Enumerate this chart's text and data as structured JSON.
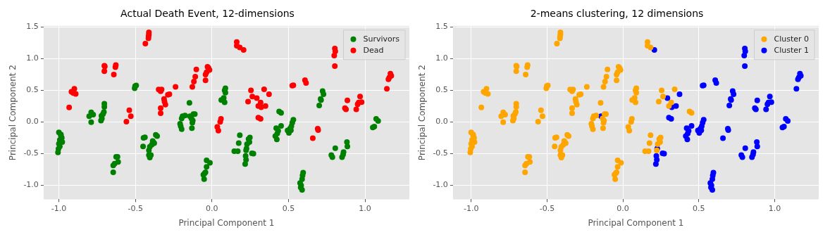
{
  "chart_data": [
    {
      "type": "scatter",
      "title": "Actual Death Event, 12-dimensions",
      "xlabel": "Principal Component 1",
      "ylabel": "Principal Component 2",
      "xlim": [
        -1.1,
        1.29
      ],
      "ylim": [
        -1.22,
        1.52
      ],
      "xticks": [
        {
          "value": -1,
          "label": "-1.0"
        },
        {
          "value": -0.5,
          "label": "-0.5"
        },
        {
          "value": 0,
          "label": "0.0"
        },
        {
          "value": 0.5,
          "label": "0.5"
        },
        {
          "value": 1,
          "label": "1.0"
        }
      ],
      "yticks": [
        {
          "value": -1,
          "label": "-1.0"
        },
        {
          "value": -0.5,
          "label": "-0.5"
        },
        {
          "value": 0,
          "label": "0.0"
        },
        {
          "value": 0.5,
          "label": "0.5"
        },
        {
          "value": 1,
          "label": "1.0"
        },
        {
          "value": 1.5,
          "label": "1.5"
        }
      ],
      "grid": true,
      "legend": "top right",
      "marker": "circle",
      "series": [
        {
          "name": "Survivors",
          "color": "#008000",
          "x": [
            -0.502,
            -0.495,
            -0.505,
            -0.703,
            -0.703,
            -0.706,
            -0.712,
            -0.722,
            -0.725,
            -0.719,
            -0.789,
            -0.776,
            -0.802,
            -0.789,
            -1.0,
            -0.987,
            -0.981,
            -0.994,
            -0.978,
            -1.0,
            -0.994,
            -1.003,
            -1.006,
            -0.987,
            -0.626,
            -0.617,
            -0.613,
            -0.636,
            -0.645,
            -0.645,
            -0.447,
            -0.438,
            -0.45,
            -0.367,
            -0.358,
            -0.387,
            -0.377,
            -0.393,
            -0.406,
            -0.412,
            -0.412,
            -0.406,
            -0.399,
            -0.147,
            -0.192,
            -0.198,
            -0.176,
            -0.208,
            -0.204,
            -0.198,
            -0.144,
            -0.134,
            -0.125,
            -0.121,
            -0.112,
            -0.128,
            -0.131,
            -0.035,
            -0.013,
            -0.035,
            -0.048,
            -0.056,
            -0.051,
            -0.042,
            0.088,
            0.083,
            0.088,
            0.077,
            0.061,
            0.083,
            0.439,
            0.452,
            0.42,
            0.433,
            0.452,
            0.427,
            0.414,
            0.424,
            0.532,
            0.525,
            0.519,
            0.51,
            0.494,
            0.503,
            0.516,
            0.723,
            0.729,
            0.71,
            0.713,
            0.701,
            0.182,
            0.175,
            0.248,
            0.239,
            0.245,
            0.229,
            0.226,
            0.223,
            0.261,
            0.271,
            0.22,
            0.223,
            0.217,
            0.146,
            0.169,
            0.596,
            0.592,
            0.589,
            0.576,
            0.583,
            0.589,
            0.58,
            0.806,
            0.78,
            0.787,
            0.882,
            0.885,
            0.86,
            0.857,
            0.85,
            1.073,
            1.086,
            1.061,
            1.051
          ],
          "values": [
            0.568,
            0.578,
            0.534,
            0.289,
            0.241,
            0.16,
            0.126,
            0.099,
            0.024,
            0.058,
            0.153,
            0.119,
            0.092,
            -0.003,
            -0.163,
            -0.197,
            -0.248,
            -0.282,
            -0.316,
            -0.344,
            -0.384,
            -0.425,
            -0.48,
            -0.214,
            -0.548,
            -0.548,
            -0.629,
            -0.656,
            -0.684,
            -0.793,
            -0.248,
            -0.241,
            -0.384,
            -0.201,
            -0.221,
            -0.299,
            -0.333,
            -0.357,
            -0.391,
            -0.446,
            -0.52,
            -0.561,
            -0.52,
            0.303,
            0.092,
            0.058,
            0.105,
            -0.027,
            -0.065,
            -0.112,
            0.092,
            0.058,
            0.024,
            0.126,
            0.126,
            -0.01,
            -0.095,
            -0.605,
            -0.643,
            -0.707,
            -0.81,
            -0.833,
            -0.901,
            -0.793,
            0.534,
            0.5,
            0.466,
            0.381,
            0.347,
            0.313,
            0.167,
            0.146,
            -0.095,
            -0.139,
            -0.061,
            -0.18,
            -0.221,
            -0.275,
            0.037,
            -0.01,
            -0.065,
            -0.105,
            -0.133,
            -0.17,
            -0.129,
            0.49,
            0.439,
            0.364,
            0.347,
            0.262,
            -0.207,
            -0.333,
            -0.242,
            -0.269,
            -0.316,
            -0.35,
            -0.418,
            -0.446,
            -0.493,
            -0.5,
            -0.534,
            -0.595,
            -0.663,
            -0.459,
            -0.459,
            -0.799,
            -0.844,
            -0.901,
            -0.963,
            -1.003,
            -1.071,
            -1.031,
            -0.412,
            -0.52,
            -0.554,
            -0.316,
            -0.384,
            -0.473,
            -0.514,
            -0.554,
            0.051,
            0.017,
            -0.071,
            -0.085
          ]
        },
        {
          "name": "Dead",
          "color": "#ff0000",
          "x": [
            -0.412,
            -0.412,
            -0.414,
            -0.415,
            -0.435,
            -0.703,
            -0.7,
            -0.703,
            -0.628,
            -0.631,
            -0.641,
            -0.899,
            -0.918,
            -0.906,
            -0.89,
            -0.933,
            -0.029,
            -0.022,
            -0.016,
            -0.035,
            -0.042,
            -0.042,
            -0.102,
            -0.109,
            -0.118,
            -0.128,
            -0.348,
            -0.329,
            -0.335,
            -0.288,
            -0.278,
            -0.313,
            -0.31,
            -0.304,
            -0.335,
            -0.335,
            -0.238,
            -0.54,
            -0.53,
            -0.559,
            0.059,
            0.054,
            0.035,
            0.042,
            0.162,
            0.162,
            0.182,
            0.207,
            0.255,
            0.264,
            0.293,
            0.236,
            0.318,
            0.303,
            0.322,
            0.35,
            0.341,
            0.373,
            0.303,
            0.318,
            0.525,
            0.532,
            0.608,
            0.615,
            0.803,
            0.806,
            0.799,
            0.803,
            0.885,
            0.869,
            0.876,
            0.968,
            0.959,
            0.952,
            0.978,
            0.943,
            0.691,
            0.694,
            0.659,
            1.166,
            1.172,
            1.159,
            1.153,
            1.143
          ],
          "values": [
            1.418,
            1.384,
            1.357,
            1.323,
            1.241,
            0.891,
            0.88,
            0.803,
            0.901,
            0.867,
            0.752,
            0.527,
            0.48,
            0.459,
            0.446,
            0.231,
            0.874,
            0.854,
            0.823,
            0.786,
            0.752,
            0.66,
            0.833,
            0.718,
            0.639,
            0.558,
            0.514,
            0.514,
            0.486,
            0.432,
            0.439,
            0.364,
            0.323,
            0.276,
            0.221,
            0.139,
            0.558,
            0.187,
            0.092,
            0.007,
            0.051,
            0.003,
            -0.078,
            -0.136,
            1.265,
            1.207,
            1.18,
            1.139,
            0.5,
            0.405,
            0.378,
            0.323,
            0.31,
            0.255,
            0.235,
            0.255,
            0.517,
            0.439,
            0.071,
            0.051,
            0.575,
            0.582,
            0.663,
            0.619,
            1.163,
            1.119,
            1.051,
            0.884,
            0.344,
            0.221,
            0.201,
            0.405,
            0.31,
            0.282,
            0.316,
            0.201,
            -0.105,
            -0.126,
            -0.255,
            0.765,
            0.731,
            0.704,
            0.677,
            0.527
          ]
        }
      ]
    },
    {
      "type": "scatter",
      "title": "2-means clustering, 12 dimensions",
      "xlabel": "Principal Component 1",
      "ylabel": "Principal Component 2",
      "xlim": [
        -1.12,
        1.29
      ],
      "ylim": [
        -1.22,
        1.52
      ],
      "xticks": [
        {
          "value": -1,
          "label": "-1.0"
        },
        {
          "value": -0.5,
          "label": "-0.5"
        },
        {
          "value": 0,
          "label": "0.0"
        },
        {
          "value": 0.5,
          "label": "0.5"
        },
        {
          "value": 1,
          "label": "1.0"
        }
      ],
      "yticks": [
        {
          "value": -1,
          "label": "-1.0"
        },
        {
          "value": -0.5,
          "label": "-0.5"
        },
        {
          "value": 0,
          "label": "0.0"
        },
        {
          "value": 0.5,
          "label": "0.5"
        },
        {
          "value": 1,
          "label": "1.0"
        },
        {
          "value": 1.5,
          "label": "1.5"
        }
      ],
      "grid": true,
      "legend": "top right",
      "marker": "circle",
      "series": [
        {
          "name": "Cluster 0",
          "color": "#ffa500",
          "x": [
            -0.502,
            -0.495,
            -0.505,
            -0.703,
            -0.703,
            -0.706,
            -0.712,
            -0.722,
            -0.725,
            -0.719,
            -0.789,
            -0.776,
            -0.802,
            -0.789,
            -1.0,
            -0.987,
            -0.981,
            -0.994,
            -0.978,
            -1.0,
            -0.994,
            -1.003,
            -1.006,
            -0.987,
            -0.626,
            -0.617,
            -0.613,
            -0.636,
            -0.645,
            -0.645,
            -0.447,
            -0.438,
            -0.45,
            -0.367,
            -0.358,
            -0.387,
            -0.377,
            -0.393,
            -0.406,
            -0.412,
            -0.412,
            -0.406,
            -0.399,
            -0.147,
            -0.192,
            -0.198,
            -0.176,
            -0.208,
            -0.204,
            -0.198,
            -0.134,
            -0.125,
            -0.121,
            -0.112,
            -0.128,
            -0.131,
            -0.035,
            -0.013,
            -0.035,
            -0.048,
            -0.056,
            -0.051,
            -0.042,
            0.088,
            0.083,
            0.088,
            0.077,
            0.061,
            0.083,
            0.439,
            0.452,
            0.182,
            0.175,
            0.248,
            0.239,
            0.245,
            0.229,
            0.223,
            0.146,
            0.169,
            -0.412,
            -0.412,
            -0.414,
            -0.415,
            -0.435,
            -0.703,
            -0.7,
            -0.703,
            -0.628,
            -0.631,
            -0.641,
            -0.899,
            -0.918,
            -0.906,
            -0.89,
            -0.933,
            -0.029,
            -0.022,
            -0.016,
            -0.035,
            -0.042,
            -0.042,
            -0.102,
            -0.109,
            -0.118,
            -0.128,
            -0.348,
            -0.329,
            -0.335,
            -0.288,
            -0.278,
            -0.313,
            -0.31,
            -0.304,
            -0.335,
            -0.335,
            -0.238,
            -0.54,
            -0.53,
            -0.559,
            0.059,
            0.054,
            0.035,
            0.042,
            0.162,
            0.162,
            0.182,
            0.255,
            0.264,
            0.236,
            0.318,
            0.303,
            0.341
          ],
          "values": [
            0.568,
            0.578,
            0.534,
            0.289,
            0.241,
            0.16,
            0.126,
            0.099,
            0.024,
            0.058,
            0.153,
            0.119,
            0.092,
            -0.003,
            -0.163,
            -0.197,
            -0.248,
            -0.282,
            -0.316,
            -0.344,
            -0.384,
            -0.425,
            -0.48,
            -0.214,
            -0.548,
            -0.548,
            -0.629,
            -0.656,
            -0.684,
            -0.793,
            -0.248,
            -0.241,
            -0.384,
            -0.201,
            -0.221,
            -0.299,
            -0.333,
            -0.357,
            -0.391,
            -0.446,
            -0.52,
            -0.561,
            -0.52,
            0.303,
            0.092,
            0.058,
            0.105,
            -0.027,
            -0.065,
            -0.112,
            0.058,
            0.024,
            0.126,
            0.126,
            -0.01,
            -0.095,
            -0.605,
            -0.643,
            -0.707,
            -0.81,
            -0.833,
            -0.901,
            -0.793,
            0.534,
            0.5,
            0.466,
            0.381,
            0.347,
            0.313,
            0.167,
            0.146,
            -0.207,
            -0.333,
            -0.242,
            -0.269,
            -0.316,
            -0.35,
            -0.446,
            -0.459,
            -0.459,
            1.418,
            1.384,
            1.357,
            1.323,
            1.241,
            0.891,
            0.88,
            0.803,
            0.901,
            0.867,
            0.752,
            0.527,
            0.48,
            0.459,
            0.446,
            0.231,
            0.874,
            0.854,
            0.823,
            0.786,
            0.752,
            0.66,
            0.833,
            0.718,
            0.639,
            0.558,
            0.514,
            0.514,
            0.486,
            0.432,
            0.439,
            0.364,
            0.323,
            0.276,
            0.221,
            0.139,
            0.558,
            0.187,
            0.092,
            0.007,
            0.051,
            0.003,
            -0.078,
            -0.136,
            1.265,
            1.207,
            1.18,
            0.5,
            0.405,
            0.323,
            0.31,
            0.255,
            0.517
          ]
        },
        {
          "name": "Cluster 1",
          "color": "#0000ff",
          "x": [
            -0.144,
            0.42,
            0.433,
            0.452,
            0.427,
            0.414,
            0.424,
            0.532,
            0.525,
            0.519,
            0.51,
            0.494,
            0.503,
            0.516,
            0.723,
            0.729,
            0.71,
            0.713,
            0.701,
            0.226,
            0.261,
            0.271,
            0.22,
            0.223,
            0.217,
            0.596,
            0.592,
            0.589,
            0.576,
            0.583,
            0.589,
            0.58,
            0.806,
            0.78,
            0.787,
            0.882,
            0.885,
            0.86,
            0.857,
            0.85,
            1.073,
            1.086,
            1.061,
            1.051,
            0.207,
            0.293,
            0.322,
            0.35,
            0.373,
            0.303,
            0.318,
            0.525,
            0.532,
            0.608,
            0.615,
            0.803,
            0.806,
            0.799,
            0.803,
            0.885,
            0.869,
            0.876,
            0.968,
            0.959,
            0.952,
            0.978,
            0.943,
            0.691,
            0.694,
            0.659,
            1.166,
            1.172,
            1.159,
            1.153,
            1.143
          ],
          "values": [
            0.092,
            -0.095,
            -0.139,
            -0.061,
            -0.18,
            -0.221,
            -0.275,
            0.037,
            -0.01,
            -0.065,
            -0.105,
            -0.133,
            -0.17,
            -0.129,
            0.49,
            0.439,
            0.364,
            0.347,
            0.262,
            -0.418,
            -0.493,
            -0.5,
            -0.534,
            -0.595,
            -0.663,
            -0.799,
            -0.844,
            -0.901,
            -0.963,
            -1.003,
            -1.071,
            -1.031,
            -0.412,
            -0.52,
            -0.554,
            -0.316,
            -0.384,
            -0.473,
            -0.514,
            -0.554,
            0.051,
            0.017,
            -0.071,
            -0.085,
            1.139,
            0.378,
            0.235,
            0.255,
            0.439,
            0.071,
            0.051,
            0.575,
            0.582,
            0.663,
            0.619,
            1.163,
            1.119,
            1.051,
            0.884,
            0.344,
            0.221,
            0.201,
            0.405,
            0.31,
            0.282,
            0.316,
            0.201,
            -0.105,
            -0.126,
            -0.255,
            0.765,
            0.731,
            0.704,
            0.677,
            0.527
          ]
        }
      ]
    }
  ]
}
